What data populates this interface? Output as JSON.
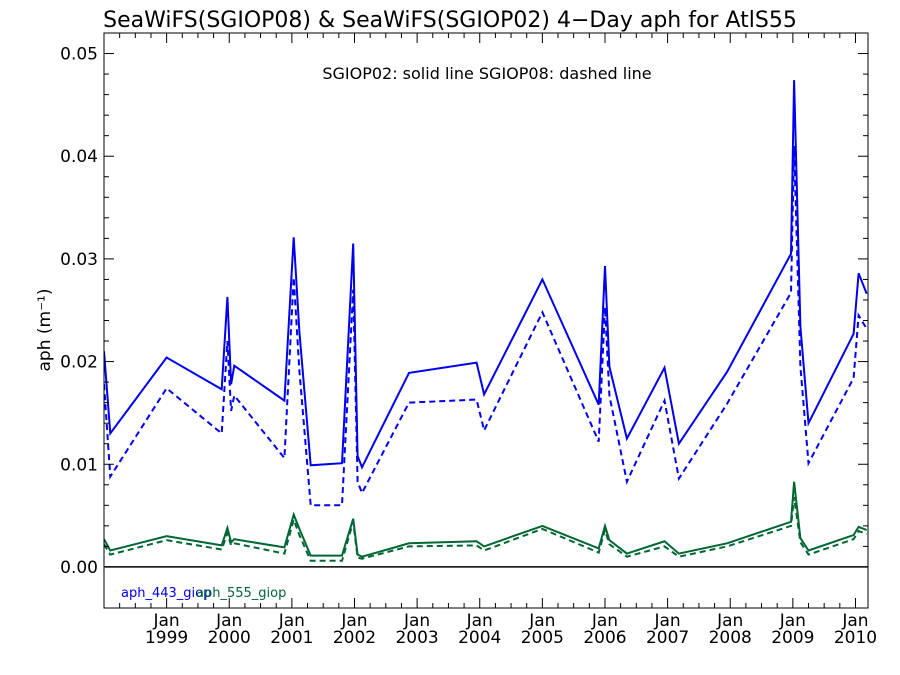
{
  "chart_data": {
    "type": "line",
    "title": "SeaWiFS(SGIOP08) & SeaWiFS(SGIOP02) 4−Day aph for AtlS55",
    "ylabel": "aph (m⁻¹)",
    "note": "SGIOP02: solid line   SGIOP08: dashed line",
    "ylim": [
      -0.004,
      0.052
    ],
    "xlim": [
      1998.0,
      2010.2
    ],
    "yticks": [
      {
        "v": 0.0,
        "label": "0.00"
      },
      {
        "v": 0.01,
        "label": "0.01"
      },
      {
        "v": 0.02,
        "label": "0.02"
      },
      {
        "v": 0.03,
        "label": "0.03"
      },
      {
        "v": 0.04,
        "label": "0.04"
      },
      {
        "v": 0.05,
        "label": "0.05"
      }
    ],
    "xticks": [
      {
        "v": 1999.0,
        "month": "Jan",
        "year": "1999"
      },
      {
        "v": 2000.0,
        "month": "Jan",
        "year": "2000"
      },
      {
        "v": 2001.0,
        "month": "Jan",
        "year": "2001"
      },
      {
        "v": 2002.0,
        "month": "Jan",
        "year": "2002"
      },
      {
        "v": 2003.0,
        "month": "Jan",
        "year": "2003"
      },
      {
        "v": 2004.0,
        "month": "Jan",
        "year": "2004"
      },
      {
        "v": 2005.0,
        "month": "Jan",
        "year": "2005"
      },
      {
        "v": 2006.0,
        "month": "Jan",
        "year": "2006"
      },
      {
        "v": 2007.0,
        "month": "Jan",
        "year": "2007"
      },
      {
        "v": 2008.0,
        "month": "Jan",
        "year": "2008"
      },
      {
        "v": 2009.0,
        "month": "Jan",
        "year": "2009"
      },
      {
        "v": 2010.0,
        "month": "Jan",
        "year": "2010"
      }
    ],
    "series": [
      {
        "name": "aph_443_giop",
        "color": "#0000ee",
        "style": "solid",
        "x": [
          1998.0,
          1998.1,
          1999.0,
          1999.88,
          1999.97,
          2000.03,
          2000.08,
          2000.88,
          2001.03,
          2001.12,
          2001.3,
          2001.8,
          2001.98,
          2002.05,
          2002.12,
          2002.87,
          2003.95,
          2004.07,
          2005.0,
          2005.9,
          2006.0,
          2006.07,
          2006.35,
          2006.95,
          2007.18,
          2007.95,
          2008.97,
          2009.02,
          2009.12,
          2009.25,
          2009.97,
          2010.05,
          2010.18
        ],
        "y": [
          0.021,
          0.013,
          0.0204,
          0.0173,
          0.0263,
          0.0178,
          0.0196,
          0.0162,
          0.0321,
          0.0229,
          0.0099,
          0.0101,
          0.0315,
          0.0108,
          0.0097,
          0.0189,
          0.0199,
          0.0168,
          0.028,
          0.0158,
          0.0293,
          0.0195,
          0.0125,
          0.0194,
          0.012,
          0.019,
          0.0305,
          0.0474,
          0.0234,
          0.014,
          0.0227,
          0.0286,
          0.0266
        ]
      },
      {
        "name": "aph_443_giop",
        "color": "#0000ee",
        "style": "dashed",
        "x": [
          1998.0,
          1998.1,
          1999.0,
          1999.88,
          1999.97,
          2000.03,
          2000.08,
          2000.88,
          2001.03,
          2001.12,
          2001.3,
          2001.8,
          2001.98,
          2002.05,
          2002.12,
          2002.87,
          2003.95,
          2004.07,
          2005.0,
          2005.9,
          2006.0,
          2006.07,
          2006.35,
          2006.95,
          2007.18,
          2007.95,
          2008.97,
          2009.02,
          2009.12,
          2009.25,
          2009.97,
          2010.05,
          2010.18
        ],
        "y": [
          0.0178,
          0.0088,
          0.0174,
          0.013,
          0.022,
          0.0152,
          0.0167,
          0.0106,
          0.0282,
          0.0191,
          0.006,
          0.006,
          0.027,
          0.0083,
          0.0072,
          0.016,
          0.0163,
          0.0133,
          0.0248,
          0.0122,
          0.0253,
          0.0167,
          0.0083,
          0.0162,
          0.0086,
          0.0159,
          0.0267,
          0.041,
          0.0195,
          0.0101,
          0.0184,
          0.0245,
          0.0232
        ]
      },
      {
        "name": "aph_555_giop",
        "color": "#006633",
        "style": "solid",
        "x": [
          1998.0,
          1998.1,
          1999.0,
          1999.88,
          1999.97,
          2000.03,
          2000.08,
          2000.88,
          2001.03,
          2001.12,
          2001.3,
          2001.8,
          2001.98,
          2002.05,
          2002.12,
          2002.87,
          2003.95,
          2004.07,
          2005.0,
          2005.9,
          2006.0,
          2006.07,
          2006.35,
          2006.95,
          2007.18,
          2007.95,
          2008.97,
          2009.02,
          2009.12,
          2009.25,
          2009.97,
          2010.05,
          2010.18
        ],
        "y": [
          0.0027,
          0.0016,
          0.003,
          0.0021,
          0.0038,
          0.0024,
          0.0027,
          0.0019,
          0.0051,
          0.0037,
          0.0011,
          0.0011,
          0.0047,
          0.0012,
          0.001,
          0.0023,
          0.0025,
          0.002,
          0.004,
          0.0018,
          0.004,
          0.0026,
          0.0013,
          0.0025,
          0.0013,
          0.0023,
          0.0044,
          0.0083,
          0.0028,
          0.0016,
          0.0031,
          0.0039,
          0.0036
        ]
      },
      {
        "name": "aph_555_giop",
        "color": "#006633",
        "style": "dashed",
        "x": [
          1998.0,
          1998.1,
          1999.0,
          1999.88,
          1999.97,
          2000.03,
          2000.08,
          2000.88,
          2001.03,
          2001.12,
          2001.3,
          2001.8,
          2001.98,
          2002.05,
          2002.12,
          2002.87,
          2003.95,
          2004.07,
          2005.0,
          2005.9,
          2006.0,
          2006.07,
          2006.35,
          2006.95,
          2007.18,
          2007.95,
          2008.97,
          2009.02,
          2009.12,
          2009.25,
          2009.97,
          2010.05,
          2010.18
        ],
        "y": [
          0.0022,
          0.0012,
          0.0026,
          0.0017,
          0.0033,
          0.0021,
          0.0023,
          0.0013,
          0.0046,
          0.0031,
          0.0006,
          0.0006,
          0.0044,
          0.0009,
          0.0008,
          0.002,
          0.0021,
          0.0016,
          0.0037,
          0.0014,
          0.0036,
          0.0022,
          0.001,
          0.002,
          0.001,
          0.002,
          0.004,
          0.0068,
          0.0024,
          0.0012,
          0.0027,
          0.0035,
          0.0032
        ]
      }
    ],
    "zero_line": 0.0,
    "legend": [
      {
        "label": "aph_443_giop",
        "color": "#0000ee"
      },
      {
        "label": "aph_555_giop",
        "color": "#006633"
      }
    ]
  }
}
